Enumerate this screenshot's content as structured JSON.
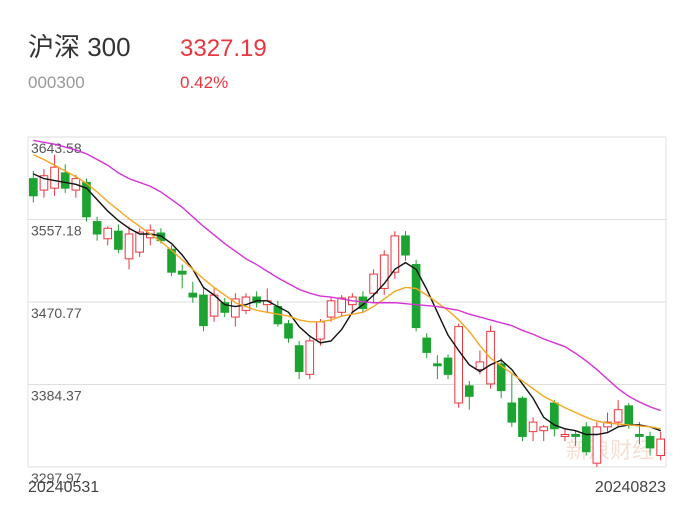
{
  "header": {
    "name": "沪深 300",
    "price": "3327.19",
    "code": "000300",
    "change": "0.42%"
  },
  "chart_data": {
    "type": "candlestick",
    "watermark": "新浪财经",
    "categories": [
      "20240531",
      null,
      null,
      null,
      null,
      null,
      null,
      null,
      null,
      null,
      null,
      null,
      null,
      null,
      null,
      null,
      null,
      null,
      null,
      null,
      null,
      null,
      null,
      null,
      null,
      null,
      null,
      null,
      null,
      null,
      null,
      null,
      null,
      null,
      null,
      null,
      null,
      null,
      null,
      null,
      null,
      null,
      null,
      null,
      null,
      null,
      null,
      null,
      null,
      null,
      null,
      null,
      null,
      null,
      null,
      null,
      null,
      null,
      null,
      "20240823"
    ],
    "open": [
      3600,
      3588,
      3590,
      3606,
      3588,
      3596,
      3555,
      3537,
      3545,
      3516,
      3523,
      3538,
      3543,
      3526,
      3503,
      3480,
      3478,
      3456,
      3470,
      3455,
      3462,
      3476,
      3468,
      3466,
      3448,
      3425,
      3395,
      3432,
      3455,
      3460,
      3468,
      3476,
      3480,
      3485,
      3502,
      3540,
      3510,
      3433,
      3406,
      3412,
      3365,
      3383,
      3400,
      3385,
      3406,
      3365,
      3370,
      3335,
      3336,
      3365,
      3330,
      3332,
      3340,
      3302,
      3340,
      3345,
      3362,
      3332,
      3330,
      3310
    ],
    "high": [
      3608,
      3610,
      3625,
      3615,
      3604,
      3600,
      3560,
      3550,
      3552,
      3550,
      3548,
      3552,
      3548,
      3530,
      3510,
      3492,
      3485,
      3485,
      3475,
      3480,
      3480,
      3482,
      3485,
      3472,
      3452,
      3430,
      3436,
      3453,
      3476,
      3478,
      3480,
      3482,
      3505,
      3525,
      3545,
      3545,
      3515,
      3438,
      3415,
      3416,
      3448,
      3388,
      3420,
      3446,
      3412,
      3395,
      3372,
      3350,
      3342,
      3368,
      3338,
      3336,
      3345,
      3345,
      3355,
      3368,
      3365,
      3345,
      3335,
      3335
    ],
    "low": [
      3575,
      3580,
      3582,
      3585,
      3580,
      3555,
      3535,
      3530,
      3522,
      3505,
      3518,
      3530,
      3532,
      3498,
      3485,
      3470,
      3440,
      3450,
      3455,
      3445,
      3458,
      3465,
      3460,
      3445,
      3428,
      3390,
      3390,
      3425,
      3450,
      3455,
      3460,
      3460,
      3470,
      3478,
      3495,
      3514,
      3440,
      3412,
      3390,
      3390,
      3360,
      3358,
      3395,
      3380,
      3370,
      3340,
      3325,
      3325,
      3325,
      3330,
      3325,
      3320,
      3310,
      3298,
      3335,
      3340,
      3338,
      3322,
      3310,
      3305
    ],
    "close": [
      3582,
      3603,
      3612,
      3590,
      3600,
      3560,
      3542,
      3548,
      3526,
      3542,
      3544,
      3546,
      3535,
      3502,
      3500,
      3476,
      3446,
      3478,
      3460,
      3474,
      3476,
      3470,
      3472,
      3448,
      3433,
      3398,
      3430,
      3450,
      3472,
      3475,
      3476,
      3464,
      3500,
      3520,
      3540,
      3520,
      3444,
      3418,
      3404,
      3395,
      3445,
      3372,
      3408,
      3440,
      3378,
      3345,
      3330,
      3345,
      3340,
      3338,
      3332,
      3330,
      3314,
      3340,
      3345,
      3358,
      3342,
      3330,
      3318,
      3327.19
    ],
    "up_color": "#e8363f",
    "down_color": "#1da331",
    "lines": [
      {
        "color": "#111111",
        "values": [
          3605,
          3600,
          3598,
          3596,
          3594,
          3590,
          3578,
          3566,
          3556,
          3548,
          3542,
          3542,
          3540,
          3532,
          3520,
          3505,
          3486,
          3478,
          3468,
          3466,
          3468,
          3472,
          3472,
          3466,
          3460,
          3445,
          3435,
          3428,
          3430,
          3442,
          3460,
          3468,
          3478,
          3490,
          3505,
          3512,
          3505,
          3484,
          3460,
          3436,
          3420,
          3405,
          3398,
          3405,
          3410,
          3400,
          3385,
          3370,
          3350,
          3342,
          3338,
          3336,
          3332,
          3332,
          3334,
          3340,
          3342,
          3342,
          3340,
          3336
        ]
      },
      {
        "color": "#f5a623",
        "values": [
          3625,
          3620,
          3614,
          3608,
          3602,
          3595,
          3586,
          3576,
          3567,
          3558,
          3550,
          3542,
          3534,
          3525,
          3515,
          3505,
          3495,
          3486,
          3478,
          3470,
          3466,
          3462,
          3460,
          3458,
          3456,
          3452,
          3450,
          3450,
          3452,
          3456,
          3458,
          3460,
          3466,
          3474,
          3482,
          3486,
          3485,
          3478,
          3470,
          3462,
          3452,
          3440,
          3425,
          3412,
          3404,
          3396,
          3388,
          3380,
          3372,
          3366,
          3360,
          3355,
          3350,
          3346,
          3344,
          3343,
          3342,
          3341,
          3340,
          3338
        ]
      },
      {
        "color": "#d633d6",
        "values": [
          3640,
          3638,
          3636,
          3633,
          3630,
          3626,
          3620,
          3614,
          3606,
          3600,
          3596,
          3592,
          3586,
          3578,
          3570,
          3560,
          3550,
          3541,
          3532,
          3524,
          3516,
          3510,
          3503,
          3496,
          3490,
          3484,
          3480,
          3477,
          3476,
          3474,
          3472,
          3471,
          3470,
          3470,
          3470,
          3469,
          3468,
          3467,
          3466,
          3464,
          3462,
          3458,
          3455,
          3452,
          3449,
          3446,
          3441,
          3437,
          3432,
          3428,
          3424,
          3417,
          3409,
          3400,
          3390,
          3380,
          3372,
          3366,
          3361,
          3357
        ]
      }
    ],
    "ylim": [
      3297.97,
      3643.58
    ],
    "yticks": [
      3643.58,
      3557.18,
      3470.77,
      3384.37,
      3297.97
    ],
    "grid": true
  }
}
